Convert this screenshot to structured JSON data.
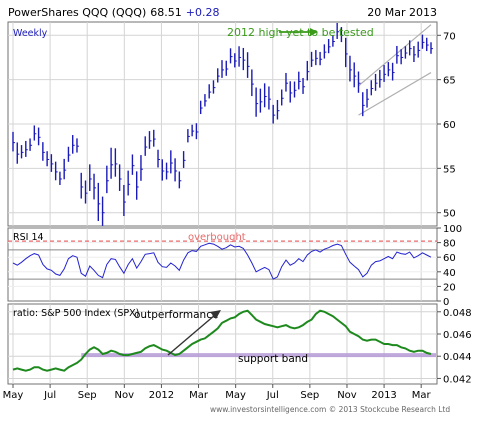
{
  "header": {
    "symbol": "PowerShares QQQ (QQQ)",
    "price": "68.51",
    "change": "+0.28",
    "date": "20 Mar 2013"
  },
  "footer": {
    "credit": "www.investorsintelligence.com © 2013 Stockcube Research Ltd"
  },
  "colors": {
    "price_bars": "#1a1ab8",
    "rsi_line": "#2323d0",
    "ratio_line": "#1e8a1e",
    "overbought_line": "#e86a6a",
    "support_band": "#b59ad6",
    "annotation_green": "#3a9a1a",
    "grid": "#d4d4d4",
    "frame": "#707070"
  },
  "chart_data": [
    {
      "type": "ohlc",
      "panel": "price",
      "series_label": "Weekly",
      "x_tick_labels": [
        "May",
        "Jul",
        "Sep",
        "Nov",
        "2012",
        "Mar",
        "May",
        "Jul",
        "Sep",
        "Nov",
        "2013",
        "Mar"
      ],
      "y_ticks": [
        50,
        55,
        60,
        65,
        70
      ],
      "ylim": [
        48.5,
        71.5
      ],
      "annotations": [
        {
          "text": "2012 high yet to be tested"
        }
      ],
      "channel": {
        "lower": [
          [
            81,
            61.0
          ],
          [
            98,
            65.8
          ]
        ],
        "upper": [
          [
            81,
            64.3
          ],
          [
            98,
            71.2
          ]
        ]
      },
      "close": [
        57.9,
        56.6,
        56.8,
        57.1,
        57.6,
        58.9,
        58.5,
        56.8,
        56.0,
        55.5,
        54.6,
        53.8,
        54.8,
        56.5,
        57.6,
        57.5,
        52.9,
        52.2,
        53.8,
        52.8,
        51.0,
        50.0,
        53.6,
        55.4,
        55.5,
        53.8,
        51.2,
        53.2,
        55.3,
        52.9,
        54.9,
        57.4,
        58.1,
        58.3,
        56.0,
        54.7,
        54.6,
        55.6,
        54.7,
        53.6,
        55.9,
        58.6,
        59.2,
        59.1,
        61.8,
        62.6,
        63.6,
        64.1,
        65.4,
        66.1,
        66.2,
        67.6,
        67.1,
        67.5,
        67.2,
        66.5,
        64.5,
        62.3,
        62.5,
        63.1,
        62.8,
        61.0,
        61.5,
        62.9,
        64.6,
        63.5,
        63.8,
        64.8,
        64.2,
        65.9,
        67.2,
        67.4,
        67.3,
        68.1,
        68.7,
        69.3,
        70.4,
        70.0,
        67.9,
        66.1,
        65.4,
        64.6,
        62.1,
        62.8,
        64.0,
        64.6,
        65.0,
        65.6,
        66.1,
        65.8,
        67.7,
        67.5,
        68.0,
        68.5,
        67.8,
        68.3,
        69.2,
        68.9,
        68.5
      ],
      "range": [
        2.2,
        2.4,
        1.5,
        1.8,
        1.4,
        1.7,
        2.0,
        2.1,
        1.7,
        2.0,
        2.1,
        1.5,
        2.3,
        1.7,
        2.1,
        1.6,
        2.9,
        2.6,
        3.0,
        2.9,
        4.3,
        3.3,
        3.1,
        3.5,
        3.2,
        3.0,
        3.5,
        2.8,
        2.3,
        3.2,
        2.9,
        2.2,
        2.0,
        1.9,
        2.0,
        2.4,
        1.9,
        2.6,
        2.6,
        1.9,
        1.9,
        1.5,
        1.3,
        1.8,
        1.5,
        1.4,
        1.6,
        1.5,
        1.6,
        2.0,
        1.7,
        1.7,
        1.6,
        2.3,
        2.5,
        2.9,
        3.0,
        3.3,
        2.7,
        2.7,
        2.6,
        2.1,
        2.2,
        1.8,
        2.1,
        2.4,
        1.8,
        2.0,
        1.8,
        2.2,
        1.7,
        1.7,
        1.5,
        1.6,
        1.6,
        1.3,
        1.8,
        1.7,
        3.3,
        2.9,
        2.8,
        2.4,
        2.7,
        2.1,
        1.7,
        1.9,
        2.0,
        1.9,
        1.6,
        2.0,
        2.0,
        1.7,
        1.4,
        1.7,
        1.8,
        1.8,
        1.6,
        1.5,
        1.3
      ]
    },
    {
      "type": "line",
      "panel": "rsi",
      "series_label": "RSI 14",
      "y_ticks": [
        0,
        20,
        40,
        60,
        80,
        100
      ],
      "ylim": [
        0,
        100
      ],
      "reference_lines": [
        30,
        70
      ],
      "overbought_level": 82,
      "annotations": [
        {
          "text": "overbought"
        }
      ],
      "values": [
        52,
        49,
        53,
        58,
        62,
        65,
        63,
        50,
        44,
        42,
        37,
        35,
        44,
        58,
        62,
        60,
        38,
        34,
        48,
        42,
        35,
        32,
        50,
        58,
        57,
        47,
        38,
        50,
        58,
        45,
        54,
        64,
        65,
        66,
        53,
        47,
        46,
        52,
        48,
        42,
        56,
        66,
        69,
        68,
        75,
        77,
        79,
        78,
        75,
        71,
        73,
        77,
        74,
        75,
        72,
        63,
        52,
        40,
        43,
        46,
        43,
        30,
        33,
        47,
        56,
        49,
        52,
        58,
        54,
        63,
        68,
        70,
        67,
        71,
        73,
        76,
        78,
        76,
        64,
        53,
        48,
        43,
        33,
        38,
        49,
        54,
        55,
        58,
        61,
        58,
        67,
        65,
        64,
        67,
        59,
        62,
        66,
        63,
        60
      ]
    },
    {
      "type": "line",
      "panel": "ratio",
      "series_label": "ratio: S&P 500 Index (SPX)",
      "y_ticks": [
        0.042,
        0.044,
        0.046,
        0.048
      ],
      "ylim": [
        0.0415,
        0.0487
      ],
      "support_band_level": 0.0441,
      "annotations": [
        {
          "text": "outperformance"
        },
        {
          "text": "support band"
        }
      ],
      "values": [
        0.0428,
        0.0429,
        0.0428,
        0.0427,
        0.0428,
        0.043,
        0.043,
        0.0428,
        0.0427,
        0.0428,
        0.0429,
        0.0428,
        0.0427,
        0.043,
        0.0432,
        0.0434,
        0.0437,
        0.0442,
        0.0446,
        0.0448,
        0.0446,
        0.0442,
        0.0443,
        0.0445,
        0.0444,
        0.0442,
        0.0441,
        0.0441,
        0.0442,
        0.0443,
        0.0444,
        0.0447,
        0.0449,
        0.045,
        0.0448,
        0.0446,
        0.0445,
        0.0443,
        0.0441,
        0.0442,
        0.0445,
        0.0448,
        0.0451,
        0.0453,
        0.0455,
        0.0456,
        0.0459,
        0.0462,
        0.0465,
        0.047,
        0.0472,
        0.0474,
        0.0475,
        0.0478,
        0.048,
        0.0481,
        0.0477,
        0.0473,
        0.0471,
        0.0469,
        0.0468,
        0.0467,
        0.0466,
        0.0467,
        0.0468,
        0.0466,
        0.0465,
        0.0466,
        0.0468,
        0.0471,
        0.0473,
        0.0478,
        0.0481,
        0.048,
        0.0478,
        0.0476,
        0.0473,
        0.047,
        0.0467,
        0.0462,
        0.046,
        0.0458,
        0.0455,
        0.0454,
        0.0455,
        0.0455,
        0.0453,
        0.0451,
        0.0451,
        0.045,
        0.045,
        0.0448,
        0.0447,
        0.0445,
        0.0444,
        0.0445,
        0.0445,
        0.0443,
        0.0442
      ]
    }
  ]
}
